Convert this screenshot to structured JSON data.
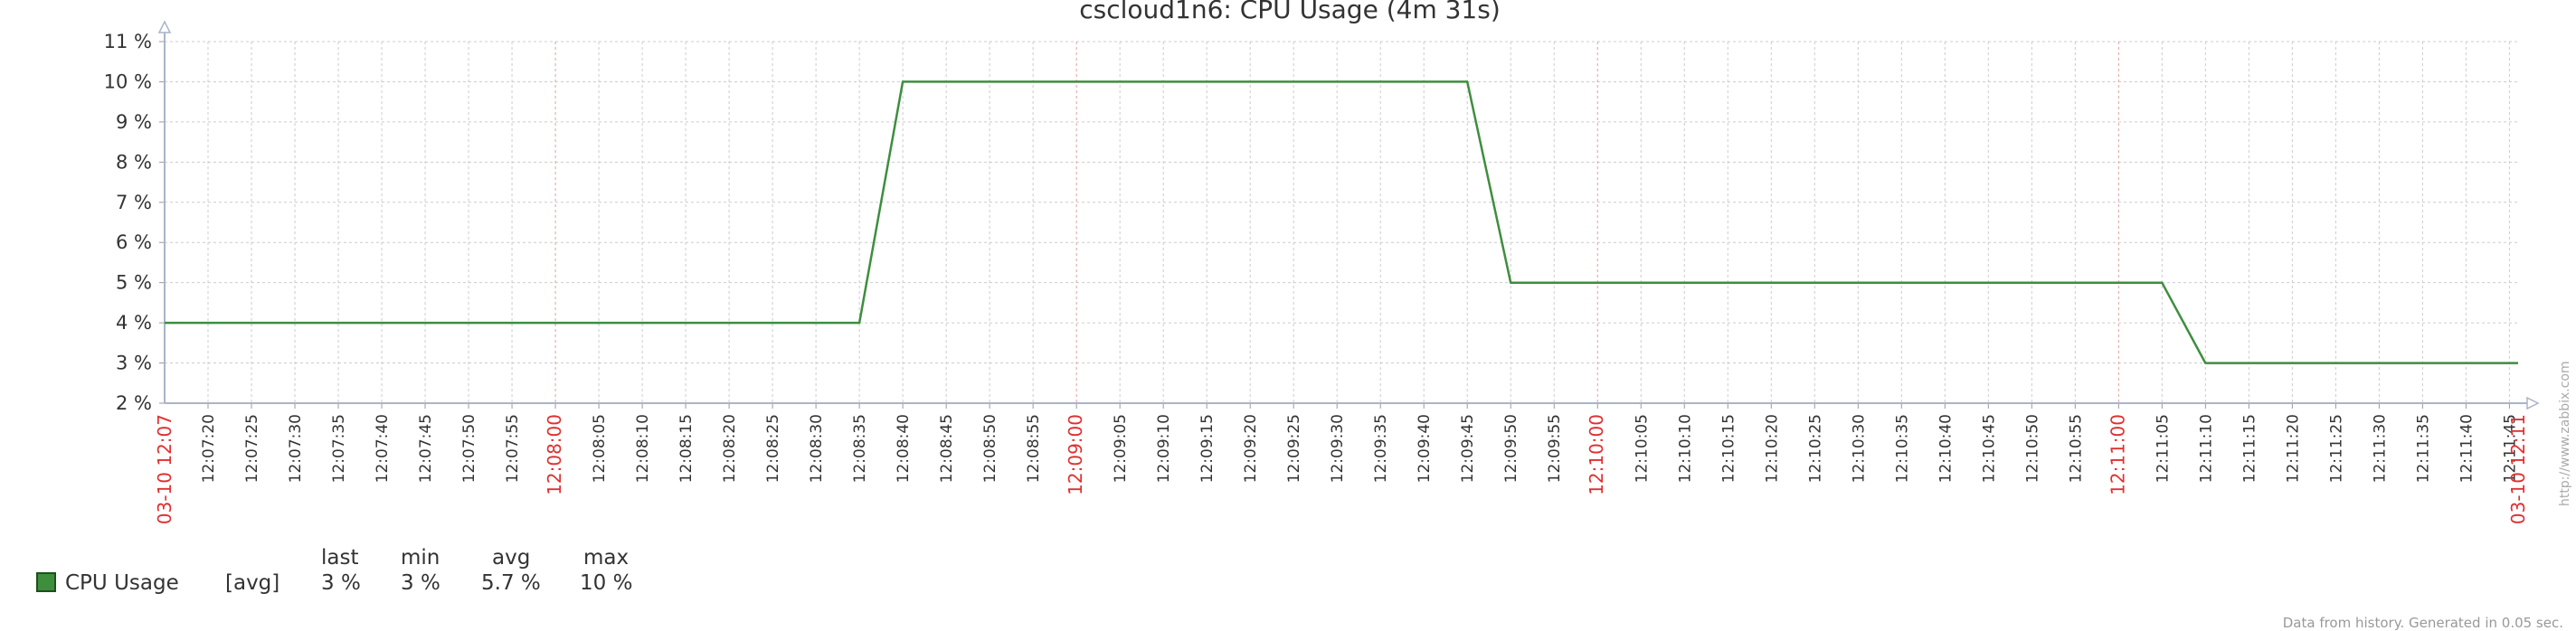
{
  "chart_data": {
    "type": "line",
    "title": "cscloud1n6: CPU Usage (4m 31s)",
    "ylim": [
      2,
      11
    ],
    "y_ticks": [
      "2 %",
      "3 %",
      "4 %",
      "5 %",
      "6 %",
      "7 %",
      "8 %",
      "9 %",
      "10 %",
      "11 %"
    ],
    "x_range": [
      "12:07:15",
      "12:11:46"
    ],
    "x_ticks": [
      {
        "label": "12:07:20",
        "highlight": false
      },
      {
        "label": "12:07:25",
        "highlight": false
      },
      {
        "label": "12:07:30",
        "highlight": false
      },
      {
        "label": "12:07:35",
        "highlight": false
      },
      {
        "label": "12:07:40",
        "highlight": false
      },
      {
        "label": "12:07:45",
        "highlight": false
      },
      {
        "label": "12:07:50",
        "highlight": false
      },
      {
        "label": "12:07:55",
        "highlight": false
      },
      {
        "label": "12:08:00",
        "highlight": true
      },
      {
        "label": "12:08:05",
        "highlight": false
      },
      {
        "label": "12:08:10",
        "highlight": false
      },
      {
        "label": "12:08:15",
        "highlight": false
      },
      {
        "label": "12:08:20",
        "highlight": false
      },
      {
        "label": "12:08:25",
        "highlight": false
      },
      {
        "label": "12:08:30",
        "highlight": false
      },
      {
        "label": "12:08:35",
        "highlight": false
      },
      {
        "label": "12:08:40",
        "highlight": false
      },
      {
        "label": "12:08:45",
        "highlight": false
      },
      {
        "label": "12:08:50",
        "highlight": false
      },
      {
        "label": "12:08:55",
        "highlight": false
      },
      {
        "label": "12:09:00",
        "highlight": true
      },
      {
        "label": "12:09:05",
        "highlight": false
      },
      {
        "label": "12:09:10",
        "highlight": false
      },
      {
        "label": "12:09:15",
        "highlight": false
      },
      {
        "label": "12:09:20",
        "highlight": false
      },
      {
        "label": "12:09:25",
        "highlight": false
      },
      {
        "label": "12:09:30",
        "highlight": false
      },
      {
        "label": "12:09:35",
        "highlight": false
      },
      {
        "label": "12:09:40",
        "highlight": false
      },
      {
        "label": "12:09:45",
        "highlight": false
      },
      {
        "label": "12:09:50",
        "highlight": false
      },
      {
        "label": "12:09:55",
        "highlight": false
      },
      {
        "label": "12:10:00",
        "highlight": true
      },
      {
        "label": "12:10:05",
        "highlight": false
      },
      {
        "label": "12:10:10",
        "highlight": false
      },
      {
        "label": "12:10:15",
        "highlight": false
      },
      {
        "label": "12:10:20",
        "highlight": false
      },
      {
        "label": "12:10:25",
        "highlight": false
      },
      {
        "label": "12:10:30",
        "highlight": false
      },
      {
        "label": "12:10:35",
        "highlight": false
      },
      {
        "label": "12:10:40",
        "highlight": false
      },
      {
        "label": "12:10:45",
        "highlight": false
      },
      {
        "label": "12:10:50",
        "highlight": false
      },
      {
        "label": "12:10:55",
        "highlight": false
      },
      {
        "label": "12:11:00",
        "highlight": true
      },
      {
        "label": "12:11:05",
        "highlight": false
      },
      {
        "label": "12:11:10",
        "highlight": false
      },
      {
        "label": "12:11:15",
        "highlight": false
      },
      {
        "label": "12:11:20",
        "highlight": false
      },
      {
        "label": "12:11:25",
        "highlight": false
      },
      {
        "label": "12:11:30",
        "highlight": false
      },
      {
        "label": "12:11:35",
        "highlight": false
      },
      {
        "label": "12:11:40",
        "highlight": false
      },
      {
        "label": "12:11:45",
        "highlight": false
      }
    ],
    "x_edge_labels": {
      "start": "03-10 12:07",
      "end": "03-10 12:11"
    },
    "grid": true,
    "series": [
      {
        "name": "CPU Usage",
        "color": "#3e8e3e",
        "points": [
          {
            "x": "12:07:15",
            "y": 4
          },
          {
            "x": "12:08:35",
            "y": 4
          },
          {
            "x": "12:08:40",
            "y": 10
          },
          {
            "x": "12:09:45",
            "y": 10
          },
          {
            "x": "12:09:50",
            "y": 5
          },
          {
            "x": "12:11:05",
            "y": 5
          },
          {
            "x": "12:11:10",
            "y": 3
          },
          {
            "x": "12:11:46",
            "y": 3
          }
        ]
      }
    ]
  },
  "legend": {
    "headers": {
      "last": "last",
      "min": "min",
      "avg": "avg",
      "max": "max"
    },
    "rows": [
      {
        "name": "CPU Usage",
        "func": "[avg]",
        "last": "3 %",
        "min": "3 %",
        "avg": "5.7 %",
        "max": "10 %"
      }
    ]
  },
  "footer_note": "Data from history. Generated in 0.05 sec.",
  "side_link": "http://www.zabbix.com"
}
